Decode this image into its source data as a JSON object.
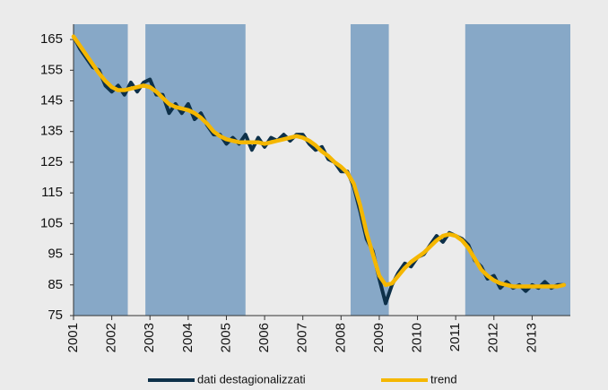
{
  "chart_data": {
    "type": "line",
    "x": [
      2001.0,
      2001.167,
      2001.333,
      2001.5,
      2001.667,
      2001.833,
      2002.0,
      2002.167,
      2002.333,
      2002.5,
      2002.667,
      2002.833,
      2003.0,
      2003.167,
      2003.333,
      2003.5,
      2003.667,
      2003.833,
      2004.0,
      2004.167,
      2004.333,
      2004.5,
      2004.667,
      2004.833,
      2005.0,
      2005.167,
      2005.333,
      2005.5,
      2005.667,
      2005.833,
      2006.0,
      2006.167,
      2006.333,
      2006.5,
      2006.667,
      2006.833,
      2007.0,
      2007.167,
      2007.333,
      2007.5,
      2007.667,
      2007.833,
      2008.0,
      2008.167,
      2008.333,
      2008.5,
      2008.667,
      2008.833,
      2009.0,
      2009.167,
      2009.333,
      2009.5,
      2009.667,
      2009.833,
      2010.0,
      2010.167,
      2010.333,
      2010.5,
      2010.667,
      2010.833,
      2011.0,
      2011.167,
      2011.333,
      2011.5,
      2011.667,
      2011.833,
      2012.0,
      2012.167,
      2012.333,
      2012.5,
      2012.667,
      2012.833,
      2013.0,
      2013.167,
      2013.333,
      2013.5,
      2013.667,
      2013.833
    ],
    "series": [
      {
        "name": "dati destagionalizzati",
        "color": "#0d3049",
        "values": [
          166,
          162,
          159,
          156,
          155,
          150,
          148,
          150,
          147,
          151,
          148,
          151,
          152,
          147,
          147,
          141,
          144,
          141,
          144,
          139,
          141,
          137,
          134,
          134,
          131,
          133,
          131,
          134,
          129,
          133,
          130,
          133,
          132,
          134,
          132,
          134,
          134,
          131,
          129,
          130,
          126,
          125,
          122,
          122,
          117,
          109,
          100,
          96,
          87,
          79,
          85,
          89,
          92,
          91,
          94,
          95,
          98,
          101,
          99,
          102,
          101,
          100,
          98,
          93,
          91,
          87,
          88,
          84,
          86,
          84,
          85,
          83,
          85,
          84,
          86,
          84,
          85,
          85
        ]
      },
      {
        "name": "trend",
        "color": "#f5b700",
        "values": [
          166,
          163,
          160,
          157,
          154,
          151.5,
          149.5,
          148.5,
          148.5,
          149,
          149.5,
          150,
          149.5,
          148,
          146,
          144,
          143,
          142.5,
          142,
          141,
          139.5,
          137.5,
          135,
          133.5,
          132.5,
          132,
          131.5,
          131.5,
          131.5,
          131.5,
          131,
          131.5,
          132,
          132.5,
          133,
          133.5,
          133,
          132,
          130.5,
          128.5,
          127,
          125,
          123.5,
          121.5,
          118,
          111,
          102,
          95,
          88,
          85,
          85.5,
          88,
          90.5,
          92.5,
          94,
          95.5,
          97.5,
          99.5,
          101,
          101.5,
          101,
          99.5,
          97,
          93.5,
          90,
          88,
          86.5,
          85.5,
          85,
          84.5,
          84.5,
          84.5,
          84.5,
          84.5,
          84.5,
          84.5,
          84.5,
          85
        ]
      }
    ],
    "bands": [
      [
        2001,
        2002.42
      ],
      [
        2002.88,
        2005.5
      ],
      [
        2008.25,
        2009.25
      ],
      [
        2011.25,
        2014
      ]
    ],
    "band_color": "#87a8c7",
    "xlim": [
      2001,
      2014
    ],
    "xticks": [
      2001,
      2002,
      2003,
      2004,
      2005,
      2006,
      2007,
      2008,
      2009,
      2010,
      2011,
      2012,
      2013
    ],
    "ylim": [
      75,
      170
    ],
    "yticks": [
      75,
      85,
      95,
      105,
      115,
      125,
      135,
      145,
      155,
      165
    ],
    "legend": "bottom"
  }
}
